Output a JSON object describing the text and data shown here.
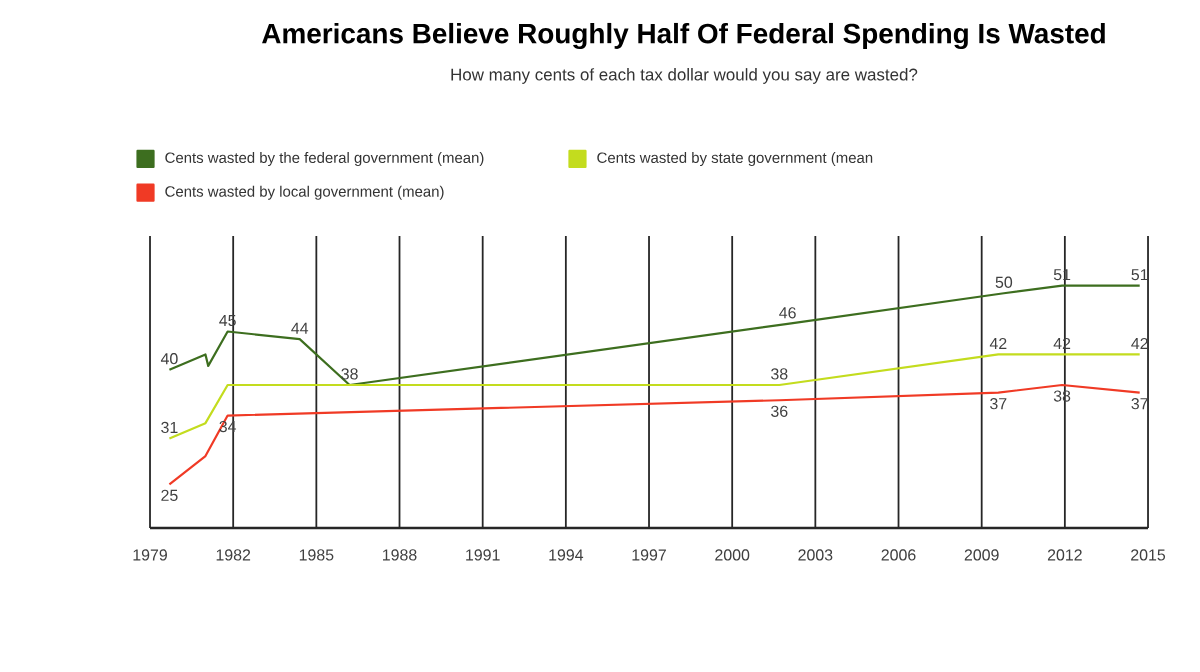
{
  "chart_data": {
    "type": "line",
    "title": "Americans Believe Roughly Half Of Federal Spending Is Wasted",
    "subtitle": "How many cents of each tax dollar would you say are wasted?",
    "xlim": [
      1979,
      2015
    ],
    "xticks": [
      1979,
      1982,
      1985,
      1988,
      1991,
      1994,
      1997,
      2000,
      2003,
      2006,
      2009,
      2012,
      2015
    ],
    "grid": "x",
    "legend": "top",
    "marker": "none",
    "line_style": "solid",
    "tick_labels": "x",
    "series": [
      {
        "name": "Cents wasted by the federal government (mean)",
        "color": "#3d6e1f",
        "x": [
          1979.7,
          1981.0,
          1981.1,
          1981.8,
          1984.4,
          1986.2,
          2002,
          2009.8,
          2011.9,
          2014.7
        ],
        "values": [
          40,
          42,
          40.5,
          45,
          44,
          38,
          46,
          50,
          51,
          51
        ],
        "value_labels": [
          "40",
          null,
          null,
          "45",
          "44",
          "38",
          "46",
          "50",
          "51",
          "51"
        ]
      },
      {
        "name": "Cents wasted by state government (mean",
        "color": "#c3dc1e",
        "x": [
          1979.7,
          1981.0,
          1981.8,
          2001.7,
          2009.6,
          2011.9,
          2014.7
        ],
        "values": [
          31,
          33,
          38,
          38,
          42,
          42,
          42
        ],
        "value_labels": [
          "31",
          null,
          null,
          "38",
          "42",
          "42",
          "42"
        ]
      },
      {
        "name": "Cents wasted by local government (mean)",
        "color": "#f03a25",
        "x": [
          1979.7,
          1981.0,
          1981.8,
          2001.7,
          2009.6,
          2011.9,
          2014.7
        ],
        "values": [
          25,
          28.7,
          34,
          36,
          37,
          38,
          37
        ],
        "value_labels": [
          "25",
          null,
          "34",
          "36",
          "37",
          "38",
          "37"
        ]
      }
    ]
  }
}
